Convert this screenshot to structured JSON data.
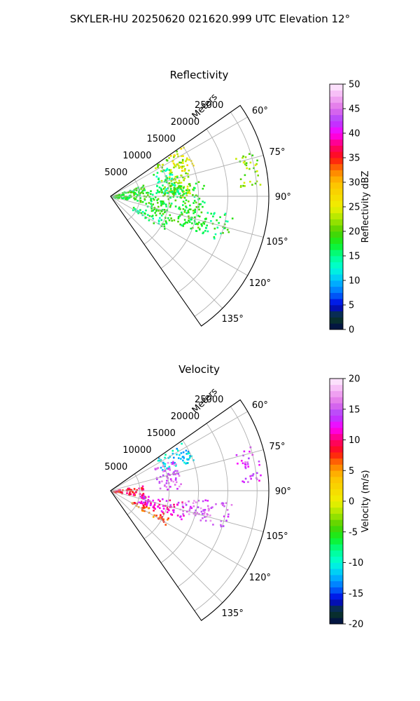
{
  "figure": {
    "suptitle": "SKYLER-HU  20250620  021620.999 UTC Elevation 12°"
  },
  "chart_data": [
    {
      "type": "heatmap",
      "kind": "ppi-sector",
      "title": "Reflectivity",
      "range_label": "Meters",
      "range_ticks": [
        5000,
        10000,
        15000,
        20000,
        25000
      ],
      "range_max": 27000,
      "azimuth_ticks": [
        60,
        75,
        90,
        105,
        120,
        135
      ],
      "azimuth_tick_labels": [
        "60°",
        "75°",
        "90°",
        "105°",
        "120°",
        "135°"
      ],
      "azimuth_range": [
        55,
        145
      ],
      "grid": true,
      "colorbar": {
        "label": "Reflectivity dBZ",
        "min": 0,
        "max": 50,
        "ticks": [
          0,
          5,
          10,
          15,
          20,
          25,
          30,
          35,
          40,
          45,
          50
        ],
        "stops": [
          [
            0,
            "#000a4a"
          ],
          [
            2.5,
            "#0b3a25"
          ],
          [
            5,
            "#0000e0"
          ],
          [
            7.5,
            "#0070ff"
          ],
          [
            10,
            "#00bfff"
          ],
          [
            12.5,
            "#00ffd8"
          ],
          [
            15,
            "#00ff90"
          ],
          [
            17.5,
            "#10f020"
          ],
          [
            20,
            "#50d000"
          ],
          [
            22.5,
            "#a8e600"
          ],
          [
            25,
            "#f0f000"
          ],
          [
            30,
            "#ffc000"
          ],
          [
            32.5,
            "#ff7a00"
          ],
          [
            35,
            "#ff1010"
          ],
          [
            37.5,
            "#ff0070"
          ],
          [
            40,
            "#ff00ff"
          ],
          [
            42.5,
            "#b040ff"
          ],
          [
            45,
            "#e070e8"
          ],
          [
            47.5,
            "#f4b0f4"
          ],
          [
            50,
            "#fff0ff"
          ]
        ]
      },
      "echo_regions": [
        {
          "az": [
            55,
            90
          ],
          "range": [
            9000,
            14000
          ],
          "value": 22
        },
        {
          "az": [
            55,
            70
          ],
          "range": [
            12000,
            15000
          ],
          "value": 26
        },
        {
          "az": [
            62,
            88
          ],
          "range": [
            8000,
            12000
          ],
          "value": 15
        },
        {
          "az": [
            70,
            100
          ],
          "range": [
            0,
            6000
          ],
          "value": 18
        },
        {
          "az": [
            80,
            112
          ],
          "range": [
            6000,
            16000
          ],
          "value": 18
        },
        {
          "az": [
            98,
            112
          ],
          "range": [
            14000,
            21000
          ],
          "value": 17
        },
        {
          "az": [
            113,
            122
          ],
          "range": [
            4000,
            11000
          ],
          "value": 16
        },
        {
          "az": [
            72,
            86
          ],
          "range": [
            22000,
            26000
          ],
          "value": 22
        }
      ]
    },
    {
      "type": "heatmap",
      "kind": "ppi-sector",
      "title": "Velocity",
      "range_label": "Meters",
      "range_ticks": [
        5000,
        10000,
        15000,
        20000,
        25000
      ],
      "range_max": 27000,
      "azimuth_ticks": [
        60,
        75,
        90,
        105,
        120,
        135
      ],
      "azimuth_tick_labels": [
        "60°",
        "75°",
        "90°",
        "105°",
        "120°",
        "135°"
      ],
      "azimuth_range": [
        55,
        145
      ],
      "grid": true,
      "colorbar": {
        "label": "Velocity (m/s)",
        "min": -20,
        "max": 20,
        "ticks": [
          -20,
          -15,
          -10,
          -5,
          0,
          5,
          10,
          15,
          20
        ],
        "stops": [
          [
            -20,
            "#000a4a"
          ],
          [
            -18,
            "#0b3a25"
          ],
          [
            -16,
            "#0000e0"
          ],
          [
            -14,
            "#0070ff"
          ],
          [
            -12,
            "#00bfff"
          ],
          [
            -10,
            "#00ffd8"
          ],
          [
            -8,
            "#00ff90"
          ],
          [
            -6,
            "#10f020"
          ],
          [
            -4,
            "#50d000"
          ],
          [
            -2,
            "#a8e600"
          ],
          [
            0,
            "#f0f000"
          ],
          [
            4,
            "#ffc000"
          ],
          [
            6,
            "#ff7a00"
          ],
          [
            8,
            "#ff1010"
          ],
          [
            10,
            "#ff0070"
          ],
          [
            12,
            "#ff00ff"
          ],
          [
            14,
            "#b040ff"
          ],
          [
            16,
            "#e070e8"
          ],
          [
            18,
            "#f4b0f4"
          ],
          [
            20,
            "#fff0ff"
          ]
        ]
      },
      "echo_regions": [
        {
          "az": [
            55,
            70
          ],
          "range": [
            9000,
            15000
          ],
          "value": -11
        },
        {
          "az": [
            62,
            88
          ],
          "range": [
            8000,
            12000
          ],
          "value": 15
        },
        {
          "az": [
            80,
            100
          ],
          "range": [
            0,
            6000
          ],
          "value": 9
        },
        {
          "az": [
            98,
            112
          ],
          "range": [
            5000,
            13000
          ],
          "value": 12
        },
        {
          "az": [
            95,
            108
          ],
          "range": [
            12000,
            21000
          ],
          "value": 15
        },
        {
          "az": [
            113,
            122
          ],
          "range": [
            4000,
            11000
          ],
          "value": 7
        },
        {
          "az": [
            72,
            86
          ],
          "range": [
            22000,
            26000
          ],
          "value": 14
        }
      ]
    }
  ]
}
